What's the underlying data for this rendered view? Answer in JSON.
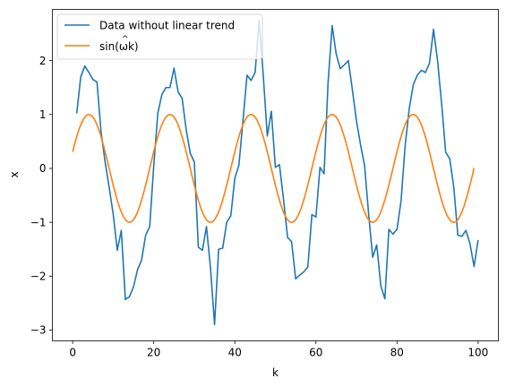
{
  "chart_data": {
    "type": "line",
    "title": "",
    "xlabel": "k",
    "ylabel": "x",
    "xlim": [
      -5,
      105
    ],
    "ylim": [
      -3.2,
      2.95
    ],
    "xticks": [
      0,
      20,
      40,
      60,
      80,
      100
    ],
    "yticks": [
      -3,
      -2,
      -1,
      0,
      1,
      2
    ],
    "xtick_labels": [
      "0",
      "20",
      "40",
      "60",
      "80",
      "100"
    ],
    "ytick_labels": [
      "−3",
      "−2",
      "−1",
      "0",
      "1",
      "2"
    ],
    "grid": false,
    "legend_position": "top-left",
    "series": [
      {
        "name": "Data without linear trend",
        "color": "#1f77b4",
        "x": [
          1,
          2,
          3,
          4,
          5,
          6,
          7,
          8,
          9,
          10,
          11,
          12,
          13,
          14,
          15,
          16,
          17,
          18,
          19,
          20,
          21,
          22,
          23,
          24,
          25,
          26,
          27,
          28,
          29,
          30,
          31,
          32,
          33,
          34,
          35,
          36,
          37,
          38,
          39,
          40,
          41,
          42,
          43,
          44,
          45,
          46,
          47,
          48,
          49,
          50,
          51,
          52,
          53,
          54,
          55,
          56,
          57,
          58,
          59,
          60,
          61,
          62,
          63,
          64,
          65,
          66,
          67,
          68,
          69,
          70,
          71,
          72,
          73,
          74,
          75,
          76,
          77,
          78,
          79,
          80,
          81,
          82,
          83,
          84,
          85,
          86,
          87,
          88,
          89,
          90,
          91,
          92,
          93,
          94,
          95,
          96,
          97,
          98,
          99,
          100
        ],
        "y": [
          1.02,
          1.7,
          1.9,
          1.78,
          1.65,
          1.6,
          0.68,
          0.12,
          -0.35,
          -0.85,
          -1.52,
          -1.15,
          -2.43,
          -2.38,
          -2.2,
          -1.88,
          -1.7,
          -1.24,
          -1.08,
          0.05,
          1.02,
          1.37,
          1.5,
          1.5,
          1.86,
          1.42,
          1.3,
          0.72,
          0.28,
          0.12,
          -1.46,
          -1.52,
          -1.08,
          -1.85,
          -2.9,
          -1.5,
          -1.48,
          -1.0,
          -0.88,
          -0.18,
          0.06,
          0.88,
          1.73,
          1.63,
          1.78,
          2.75,
          1.74,
          0.6,
          1.06,
          0.02,
          0.07,
          -0.57,
          -1.28,
          -1.36,
          -2.05,
          -1.98,
          -1.92,
          -1.83,
          -0.86,
          -0.9,
          0.02,
          -0.1,
          1.6,
          2.65,
          2.12,
          1.85,
          1.92,
          2.0,
          1.45,
          0.88,
          0.44,
          0.05,
          -0.85,
          -1.65,
          -1.42,
          -2.18,
          -2.42,
          -1.13,
          -1.22,
          -1.13,
          -0.6,
          0.42,
          1.1,
          1.55,
          1.73,
          1.82,
          1.78,
          1.95,
          2.58,
          2.0,
          1.2,
          0.3,
          0.18,
          -0.35,
          -1.24,
          -1.26,
          -1.15,
          -1.4,
          -1.82,
          -1.33
        ]
      },
      {
        "name": "sin(ω̂k)",
        "color": "#ff7f0e",
        "x_start": 0,
        "x_end": 99,
        "omega": 0.3142,
        "phase": 0.3142,
        "note_formula": "y = sin(omega*x + phase)"
      }
    ]
  },
  "legend": {
    "entries": [
      {
        "label_text": "Data without linear trend",
        "color": "#1f77b4"
      },
      {
        "label_prefix": "sin(",
        "label_symbol": "ω",
        "label_hat": "^",
        "label_var": "k",
        "label_suffix": ")",
        "color": "#ff7f0e"
      }
    ]
  }
}
